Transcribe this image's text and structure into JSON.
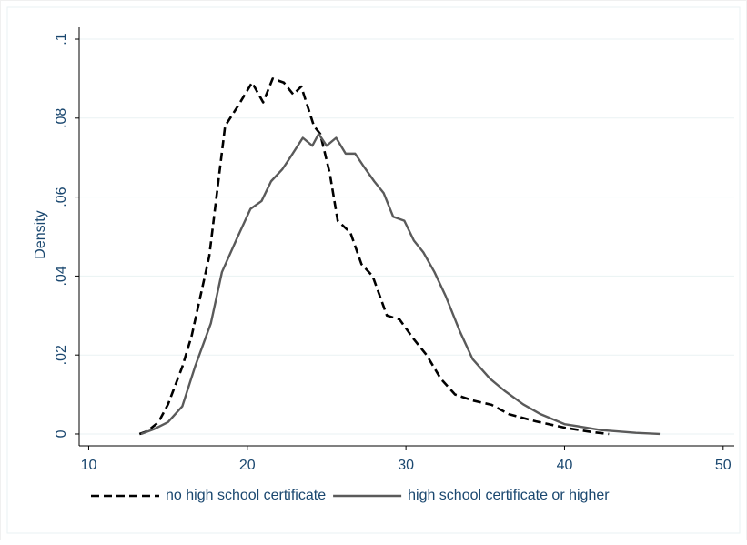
{
  "chart_data": {
    "type": "line",
    "y_label": "Density",
    "xlim": [
      9.4,
      50.7
    ],
    "ylim": [
      -0.003,
      0.103
    ],
    "xticks": [
      10,
      20,
      30,
      40,
      50
    ],
    "yticks": [
      {
        "value": 0,
        "label": "0"
      },
      {
        "value": 0.02,
        "label": ".02"
      },
      {
        "value": 0.04,
        "label": ".04"
      },
      {
        "value": 0.06,
        "label": ".06"
      },
      {
        "value": 0.08,
        "label": ".08"
      },
      {
        "value": 0.1,
        "label": ".1"
      }
    ],
    "grid": true,
    "legend_position": "bottom",
    "series": [
      {
        "name": "no high school certificate",
        "color": "#000000",
        "line_style": "dashed",
        "x": [
          13.2,
          13.7,
          14.4,
          15,
          15.9,
          16.5,
          17.6,
          18.6,
          19.4,
          20.3,
          21,
          21.6,
          22.3,
          22.9,
          23.4,
          24.2,
          24.6,
          25.2,
          25.7,
          26.5,
          27.2,
          27.9,
          28.8,
          29.6,
          30.5,
          31.3,
          32.2,
          33.1,
          34.2,
          35.4,
          36.5,
          38.2,
          40,
          41.7,
          42.8
        ],
        "values": [
          0,
          0.0007,
          0.003,
          0.0075,
          0.017,
          0.025,
          0.045,
          0.078,
          0.083,
          0.089,
          0.084,
          0.09,
          0.089,
          0.086,
          0.088,
          0.078,
          0.076,
          0.066,
          0.054,
          0.051,
          0.043,
          0.04,
          0.03,
          0.029,
          0.024,
          0.02,
          0.014,
          0.01,
          0.0085,
          0.0074,
          0.005,
          0.0032,
          0.0016,
          0.0005,
          0
        ]
      },
      {
        "name": "high school certificate or higher",
        "color": "#5a5a5a",
        "line_style": "solid",
        "x": [
          13.3,
          14.1,
          15,
          15.9,
          16.7,
          17.7,
          18.4,
          19.4,
          20.2,
          20.9,
          21.5,
          22.2,
          22.7,
          23.5,
          24.1,
          24.5,
          25,
          25.6,
          26.2,
          26.8,
          27.3,
          28,
          28.6,
          29.2,
          29.9,
          30.5,
          31.1,
          31.8,
          32.5,
          33.4,
          34.2,
          35.3,
          36.2,
          37.4,
          38.5,
          40,
          42.3,
          44.5,
          46
        ],
        "values": [
          0,
          0.0012,
          0.003,
          0.007,
          0.017,
          0.028,
          0.041,
          0.05,
          0.057,
          0.059,
          0.064,
          0.067,
          0.07,
          0.075,
          0.073,
          0.076,
          0.073,
          0.075,
          0.071,
          0.071,
          0.068,
          0.064,
          0.061,
          0.055,
          0.054,
          0.049,
          0.046,
          0.041,
          0.035,
          0.026,
          0.019,
          0.014,
          0.011,
          0.0075,
          0.005,
          0.0025,
          0.001,
          0.0003,
          0
        ]
      }
    ]
  }
}
